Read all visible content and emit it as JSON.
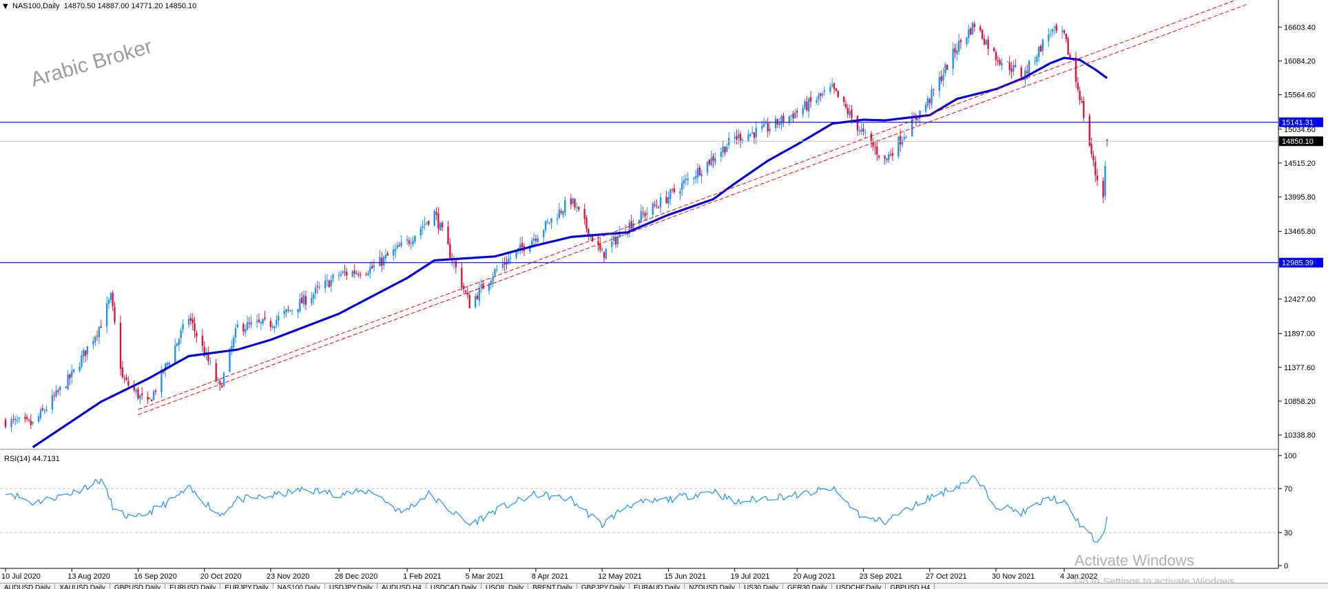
{
  "header": {
    "arrow": "▼",
    "text": "NAS100,Daily  14870.50 14887.00 14771.20 14850.10"
  },
  "watermark": "Arabic Broker",
  "activate": {
    "title": "Activate Windows",
    "subtitle": "Go to Settings to activate Windows."
  },
  "rsi": {
    "label": "RSI(14) 44.7131"
  },
  "colors": {
    "bull": "#1e90ff",
    "bear": "#dc143c",
    "ma": "#0000dd",
    "hline": "#0000ff",
    "trend": "#ff0000",
    "rsi": "#1e90ff",
    "grid": "#c0c0c0"
  },
  "chart_data": [
    {
      "type": "candlestick",
      "symbol": "NAS100",
      "timeframe": "Daily",
      "ohlc_last": {
        "open": 14870.5,
        "high": 14887.0,
        "low": 14771.2,
        "close": 14850.1
      },
      "ylim": [
        10150,
        16850
      ],
      "xlim": [
        "2020-07-10",
        "2022-01-26"
      ],
      "y_ticks": [
        "16603.40",
        "16084.20",
        "15564.60",
        "15034.60",
        "14515.20",
        "13995.80",
        "13465.80",
        "12427.00",
        "11897.00",
        "11377.60",
        "10858.20",
        "10338.80"
      ],
      "price_labels": [
        {
          "text": "15141.31",
          "value": 15141.31,
          "kind": "hline"
        },
        {
          "text": "14850.10",
          "value": 14850.1,
          "kind": "last"
        },
        {
          "text": "12985.39",
          "value": 12985.39,
          "kind": "hline"
        }
      ],
      "x_ticks": [
        {
          "label": "10 Jul 2020",
          "date": "2020-07-10"
        },
        {
          "label": "13 Aug 2020",
          "date": "2020-08-13"
        },
        {
          "label": "16 Sep 2020",
          "date": "2020-09-16"
        },
        {
          "label": "20 Oct 2020",
          "date": "2020-10-20"
        },
        {
          "label": "23 Nov 2020",
          "date": "2020-11-23"
        },
        {
          "label": "28 Dec 2020",
          "date": "2020-12-28"
        },
        {
          "label": "1 Feb 2021",
          "date": "2021-02-01"
        },
        {
          "label": "5 Mar 2021",
          "date": "2021-03-05"
        },
        {
          "label": "8 Apr 2021",
          "date": "2021-04-08"
        },
        {
          "label": "12 May 2021",
          "date": "2021-05-12"
        },
        {
          "label": "15 Jun 2021",
          "date": "2021-06-15"
        },
        {
          "label": "19 Jul 2021",
          "date": "2021-07-19"
        },
        {
          "label": "20 Aug 2021",
          "date": "2021-08-20"
        },
        {
          "label": "23 Sep 2021",
          "date": "2021-09-23"
        },
        {
          "label": "27 Oct 2021",
          "date": "2021-10-27"
        },
        {
          "label": "30 Nov 2021",
          "date": "2021-11-30"
        },
        {
          "label": "4 Jan 2022",
          "date": "2022-01-04"
        }
      ],
      "close_path": [
        [
          "2020-07-10",
          10550
        ],
        [
          "2020-07-24",
          10500
        ],
        [
          "2020-08-13",
          11250
        ],
        [
          "2020-08-28",
          12050
        ],
        [
          "2020-09-02",
          12450
        ],
        [
          "2020-09-08",
          11200
        ],
        [
          "2020-09-21",
          10800
        ],
        [
          "2020-10-12",
          12150
        ],
        [
          "2020-10-28",
          11050
        ],
        [
          "2020-11-06",
          12000
        ],
        [
          "2020-11-23",
          12050
        ],
        [
          "2020-12-10",
          12400
        ],
        [
          "2020-12-28",
          12800
        ],
        [
          "2021-01-14",
          12900
        ],
        [
          "2021-02-01",
          13300
        ],
        [
          "2021-02-15",
          13750
        ],
        [
          "2021-03-05",
          12350
        ],
        [
          "2021-03-18",
          12850
        ],
        [
          "2021-04-08",
          13400
        ],
        [
          "2021-04-26",
          13950
        ],
        [
          "2021-05-12",
          13100
        ],
        [
          "2021-05-25",
          13550
        ],
        [
          "2021-06-15",
          14000
        ],
        [
          "2021-07-08",
          14600
        ],
        [
          "2021-07-19",
          14900
        ],
        [
          "2021-08-05",
          15050
        ],
        [
          "2021-08-20",
          15300
        ],
        [
          "2021-09-07",
          15650
        ],
        [
          "2021-09-23",
          14950
        ],
        [
          "2021-10-04",
          14550
        ],
        [
          "2021-10-27",
          15500
        ],
        [
          "2021-11-10",
          16300
        ],
        [
          "2021-11-19",
          16650
        ],
        [
          "2021-11-30",
          16150
        ],
        [
          "2021-12-14",
          15850
        ],
        [
          "2021-12-28",
          16550
        ],
        [
          "2022-01-04",
          16450
        ],
        [
          "2022-01-12",
          15550
        ],
        [
          "2022-01-20",
          14350
        ],
        [
          "2022-01-24",
          14050
        ],
        [
          "2022-01-26",
          14850
        ]
      ],
      "moving_average_path": [
        [
          "2020-07-24",
          10150
        ],
        [
          "2020-08-28",
          10850
        ],
        [
          "2020-09-21",
          11200
        ],
        [
          "2020-10-12",
          11550
        ],
        [
          "2020-11-06",
          11650
        ],
        [
          "2020-11-23",
          11800
        ],
        [
          "2020-12-28",
          12200
        ],
        [
          "2021-02-01",
          12750
        ],
        [
          "2021-02-15",
          13020
        ],
        [
          "2021-03-18",
          13080
        ],
        [
          "2021-04-08",
          13250
        ],
        [
          "2021-04-26",
          13380
        ],
        [
          "2021-05-25",
          13450
        ],
        [
          "2021-06-15",
          13720
        ],
        [
          "2021-07-08",
          13960
        ],
        [
          "2021-07-19",
          14200
        ],
        [
          "2021-08-05",
          14550
        ],
        [
          "2021-08-20",
          14800
        ],
        [
          "2021-09-07",
          15120
        ],
        [
          "2021-09-23",
          15180
        ],
        [
          "2021-10-04",
          15170
        ],
        [
          "2021-10-27",
          15250
        ],
        [
          "2021-11-10",
          15500
        ],
        [
          "2021-11-30",
          15650
        ],
        [
          "2021-12-14",
          15820
        ],
        [
          "2021-12-28",
          16050
        ],
        [
          "2022-01-04",
          16130
        ],
        [
          "2022-01-12",
          16100
        ],
        [
          "2022-01-20",
          15950
        ],
        [
          "2022-01-26",
          15820
        ]
      ],
      "trend_lines": [
        [
          [
            "2020-09-16",
            10730
          ],
          [
            "2022-01-26",
            16390
          ]
        ],
        [
          [
            "2020-09-16",
            10650
          ],
          [
            "2022-01-26",
            16260
          ]
        ]
      ]
    },
    {
      "type": "line",
      "name": "RSI(14)",
      "ylim": [
        0,
        100
      ],
      "y_ticks": [
        "100",
        "70",
        "30",
        "0"
      ],
      "levels": [
        70,
        30
      ],
      "current": 44.7131,
      "path": [
        [
          "2020-07-10",
          68
        ],
        [
          "2020-07-24",
          57
        ],
        [
          "2020-08-13",
          66
        ],
        [
          "2020-08-28",
          78
        ],
        [
          "2020-09-04",
          50
        ],
        [
          "2020-09-14",
          42
        ],
        [
          "2020-10-02",
          58
        ],
        [
          "2020-10-12",
          70
        ],
        [
          "2020-10-28",
          46
        ],
        [
          "2020-11-06",
          60
        ],
        [
          "2020-11-23",
          63
        ],
        [
          "2020-12-10",
          69
        ],
        [
          "2020-12-28",
          65
        ],
        [
          "2021-01-14",
          68
        ],
        [
          "2021-01-29",
          48
        ],
        [
          "2021-02-12",
          65
        ],
        [
          "2021-03-05",
          37
        ],
        [
          "2021-03-18",
          50
        ],
        [
          "2021-04-08",
          65
        ],
        [
          "2021-04-26",
          60
        ],
        [
          "2021-05-12",
          37
        ],
        [
          "2021-05-25",
          55
        ],
        [
          "2021-06-15",
          60
        ],
        [
          "2021-07-08",
          68
        ],
        [
          "2021-07-19",
          57
        ],
        [
          "2021-08-05",
          62
        ],
        [
          "2021-08-20",
          64
        ],
        [
          "2021-09-07",
          70
        ],
        [
          "2021-09-23",
          43
        ],
        [
          "2021-10-04",
          40
        ],
        [
          "2021-10-27",
          62
        ],
        [
          "2021-11-10",
          72
        ],
        [
          "2021-11-19",
          80
        ],
        [
          "2021-11-30",
          55
        ],
        [
          "2021-12-14",
          48
        ],
        [
          "2021-12-28",
          62
        ],
        [
          "2022-01-04",
          57
        ],
        [
          "2022-01-12",
          38
        ],
        [
          "2022-01-20",
          22
        ],
        [
          "2022-01-24",
          26
        ],
        [
          "2022-01-26",
          44.7
        ]
      ]
    }
  ],
  "tabs": [
    "AUDUSD,Daily",
    "XAUUSD,Daily",
    "GBPUSD,Daily",
    "EURUSD,Daily",
    "EURJPY,Daily",
    "NAS100,Daily",
    "USDJPY,Daily",
    "AUDUSD,H4",
    "USDCAD,Daily",
    "USOIL,Daily",
    "BRENT,Daily",
    "GBPJPY,Daily",
    "EURAUD,Daily",
    "NZDUSD,Daily",
    "US30,Daily",
    "GER30,Daily",
    "USDCHF,Daily",
    "GBPUSD,H4"
  ],
  "active_tab": 5
}
